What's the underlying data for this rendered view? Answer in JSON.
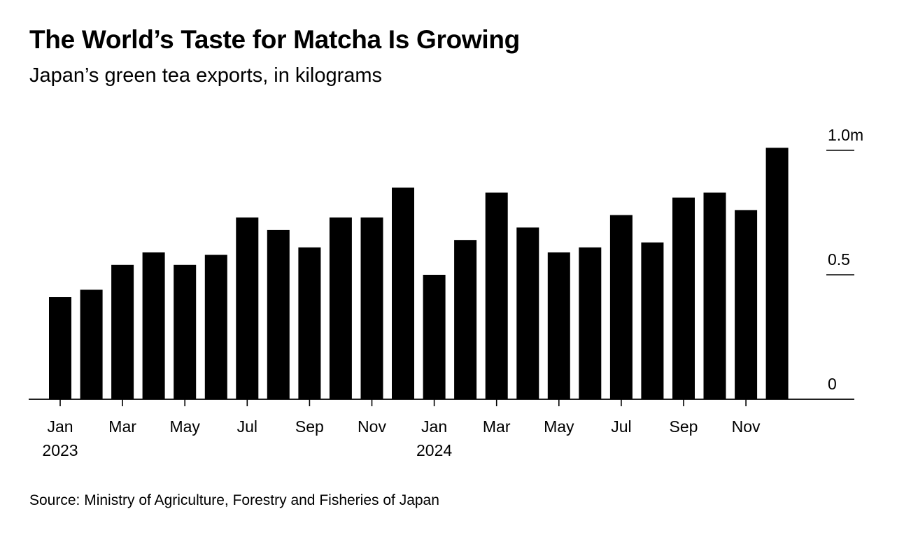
{
  "chart_data": {
    "type": "bar",
    "title": "The World’s Taste for Matcha Is Growing",
    "subtitle": "Japan’s green tea exports, in kilograms",
    "source": "Source: Ministry of Agriculture, Forestry and Fisheries of Japan",
    "categories": [
      "Jan 2023",
      "Feb 2023",
      "Mar 2023",
      "Apr 2023",
      "May 2023",
      "Jun 2023",
      "Jul 2023",
      "Aug 2023",
      "Sep 2023",
      "Oct 2023",
      "Nov 2023",
      "Dec 2023",
      "Jan 2024",
      "Feb 2024",
      "Mar 2024",
      "Apr 2024",
      "May 2024",
      "Jun 2024",
      "Jul 2024",
      "Aug 2024",
      "Sep 2024",
      "Oct 2024",
      "Nov 2024",
      "Dec 2024"
    ],
    "values": [
      0.41,
      0.44,
      0.54,
      0.59,
      0.54,
      0.58,
      0.73,
      0.68,
      0.61,
      0.73,
      0.73,
      0.85,
      0.5,
      0.64,
      0.83,
      0.69,
      0.59,
      0.61,
      0.74,
      0.63,
      0.81,
      0.83,
      0.76,
      1.01
    ],
    "unit": "million kg",
    "ylim": [
      0,
      1.0
    ],
    "yticks": [
      {
        "value": 0,
        "label": "0"
      },
      {
        "value": 0.5,
        "label": "0.5"
      },
      {
        "value": 1.0,
        "label": "1.0m"
      }
    ],
    "xtick_labels": [
      {
        "index": 0,
        "month": "Jan",
        "year": "2023"
      },
      {
        "index": 2,
        "month": "Mar"
      },
      {
        "index": 4,
        "month": "May"
      },
      {
        "index": 6,
        "month": "Jul"
      },
      {
        "index": 8,
        "month": "Sep"
      },
      {
        "index": 10,
        "month": "Nov"
      },
      {
        "index": 12,
        "month": "Jan",
        "year": "2024"
      },
      {
        "index": 14,
        "month": "Mar"
      },
      {
        "index": 16,
        "month": "May"
      },
      {
        "index": 18,
        "month": "Jul"
      },
      {
        "index": 20,
        "month": "Sep"
      },
      {
        "index": 22,
        "month": "Nov"
      }
    ],
    "yaxis_position": "right",
    "grid": false,
    "legend": "none",
    "bar_color": "#000000"
  }
}
